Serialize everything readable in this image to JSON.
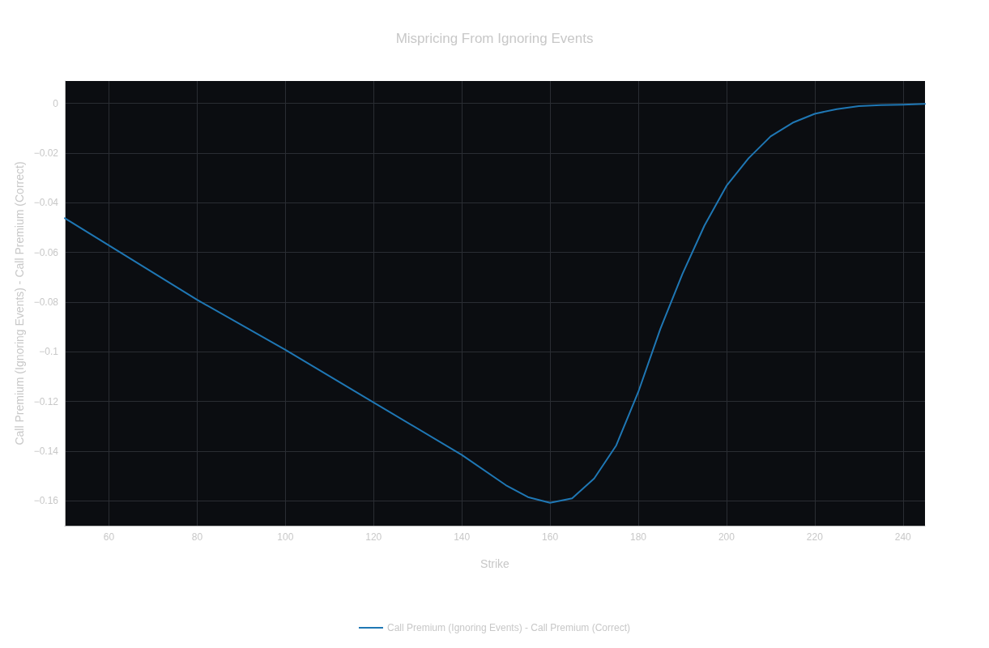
{
  "chart_data": {
    "type": "line",
    "title": "Mispricing From Ignoring Events",
    "xlabel": "Strike",
    "ylabel": "Call Premium (Ignoring Events) - Call Premium (Correct)",
    "x": [
      50,
      80,
      100,
      120,
      140,
      150,
      155,
      160,
      165,
      170,
      175,
      180,
      185,
      190,
      195,
      200,
      205,
      210,
      215,
      220,
      225,
      230,
      235,
      240,
      245
    ],
    "series": [
      {
        "name": "Call Premium (Ignoring Events) - Call Premium (Correct)",
        "color": "#1f77b4",
        "values": [
          -0.0462,
          -0.0791,
          -0.0992,
          -0.1204,
          -0.1415,
          -0.1537,
          -0.1585,
          -0.1608,
          -0.159,
          -0.151,
          -0.1377,
          -0.1162,
          -0.0908,
          -0.0687,
          -0.0492,
          -0.0332,
          -0.0221,
          -0.0133,
          -0.0078,
          -0.0042,
          -0.0023,
          -0.0011,
          -0.0007,
          -0.0005,
          -0.0002
        ]
      }
    ],
    "xlim": [
      50,
      245
    ],
    "xticks": [
      60,
      80,
      100,
      120,
      140,
      160,
      180,
      200,
      220,
      240
    ],
    "ylim": [
      -0.17,
      0.009
    ],
    "yticks": [
      {
        "value": -0.16,
        "label": "−0.16"
      },
      {
        "value": -0.14,
        "label": "−0.14"
      },
      {
        "value": -0.12,
        "label": "−0.12"
      },
      {
        "value": -0.1,
        "label": "−0.1"
      },
      {
        "value": -0.08,
        "label": "−0.08"
      },
      {
        "value": -0.06,
        "label": "−0.06"
      },
      {
        "value": -0.04,
        "label": "−0.04"
      },
      {
        "value": -0.02,
        "label": "−0.02"
      },
      0
    ],
    "grid": true,
    "legend": "bottom",
    "marker": "none",
    "line_style": "solid"
  }
}
